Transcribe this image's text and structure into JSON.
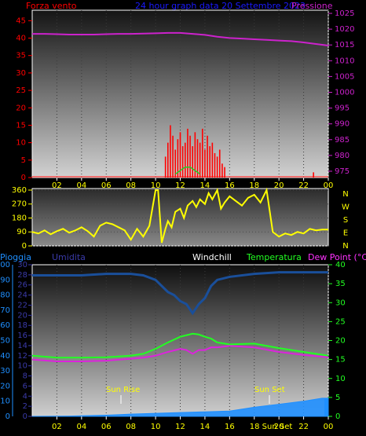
{
  "colors": {
    "background": "#000000",
    "wind": "#ff0000",
    "pressure": "#cc22cc",
    "header_blue": "#1a1aff",
    "direction": "#ffff00",
    "rain_label": "#1f8fff",
    "humidity_label": "#3a3aa8",
    "windchill_label": "#ffffff",
    "temperature_label": "#22ff22",
    "dewpoint_label": "#ff33ff",
    "humidity_line": "#1a4f9a",
    "temperature_line": "#22ff22",
    "dewpoint_line": "#dd22dd",
    "rain_fill": "#1f8fff",
    "tick_text": "#ffff00"
  },
  "top": {
    "left_title": "Forza vento",
    "center_title": "24 hour graph data  20 Settembre 2023",
    "right_title": "Pressione"
  },
  "mid": {
    "direction_letters": [
      "N",
      "W",
      "S",
      "E",
      "N"
    ]
  },
  "bottom": {
    "rain_title": "Pioggia",
    "humidity_title": "Umidita",
    "windchill_title": "Windchill",
    "temperature_title": "Temperatura",
    "dewpoint_title": "Dew Point (°C)",
    "sunrise_label": "Sun Rise",
    "sunset_label": "Sun Set",
    "sunset_tick_label": "18 Sun Set"
  },
  "chart_data": [
    {
      "type": "line",
      "name": "wind_and_pressure",
      "x_tick_labels": [
        "02",
        "04",
        "06",
        "08",
        "10",
        "12",
        "14",
        "16",
        "18",
        "20",
        "22",
        "00"
      ],
      "left_axis": {
        "ticks": [
          0,
          5,
          10,
          15,
          20,
          25,
          30,
          35,
          40,
          45
        ],
        "ylim": [
          0,
          48
        ]
      },
      "right_axis": {
        "ticks": [
          975,
          980,
          985,
          990,
          995,
          1000,
          1005,
          1010,
          1015,
          1020,
          1025
        ],
        "ylim": [
          973,
          1026
        ]
      },
      "pressure": {
        "x": [
          0,
          1,
          2,
          3,
          4,
          5,
          6,
          7,
          8,
          9,
          10,
          11,
          12,
          13,
          14,
          15,
          16,
          17,
          18,
          19,
          20,
          21,
          22,
          23,
          24
        ],
        "values": [
          1018.5,
          1018.5,
          1018.4,
          1018.3,
          1018.3,
          1018.3,
          1018.4,
          1018.5,
          1018.5,
          1018.6,
          1018.7,
          1018.8,
          1018.8,
          1018.5,
          1018.2,
          1017.6,
          1017.2,
          1017.0,
          1016.8,
          1016.6,
          1016.4,
          1016.2,
          1015.8,
          1015.3,
          1014.8
        ]
      },
      "wind": {
        "x": [
          10.8,
          11.0,
          11.2,
          11.4,
          11.6,
          11.8,
          12.0,
          12.2,
          12.4,
          12.6,
          12.8,
          13.0,
          13.2,
          13.4,
          13.6,
          13.8,
          14.0,
          14.2,
          14.4,
          14.6,
          14.8,
          15.0,
          15.2,
          15.4,
          15.6,
          22.8
        ],
        "values": [
          6,
          10,
          15,
          12,
          8,
          11,
          13,
          9,
          10,
          14,
          12,
          9,
          13,
          11,
          10,
          14,
          8,
          12,
          9,
          10,
          7,
          6,
          8,
          4,
          3,
          1.5
        ]
      },
      "gust_green": {
        "x": [
          11.6,
          12.0,
          12.4,
          12.8,
          13.2,
          13.6
        ],
        "values": [
          1,
          2,
          3,
          3,
          2,
          1
        ]
      }
    },
    {
      "type": "line",
      "name": "wind_direction",
      "y_ticks": [
        0,
        90,
        180,
        270,
        360
      ],
      "ylim": [
        0,
        370
      ],
      "x": [
        0,
        0.5,
        1,
        1.5,
        2,
        2.5,
        3,
        3.5,
        4,
        4.5,
        5,
        5.5,
        6,
        6.5,
        7,
        7.5,
        8,
        8.5,
        9,
        9.5,
        10,
        10.2,
        10.5,
        10.8,
        11,
        11.3,
        11.6,
        12,
        12.3,
        12.6,
        13,
        13.3,
        13.6,
        14,
        14.3,
        14.6,
        15,
        15.3,
        15.6,
        16,
        16.5,
        17,
        17.5,
        18,
        18.5,
        19,
        19.5,
        20,
        20.5,
        21,
        21.5,
        22,
        22.5,
        23,
        23.5,
        24
      ],
      "values": [
        90,
        80,
        100,
        75,
        95,
        110,
        85,
        100,
        120,
        95,
        60,
        130,
        150,
        140,
        120,
        100,
        40,
        110,
        60,
        130,
        360,
        360,
        20,
        110,
        160,
        120,
        220,
        240,
        180,
        260,
        290,
        250,
        300,
        270,
        340,
        300,
        360,
        240,
        280,
        320,
        290,
        260,
        310,
        330,
        280,
        360,
        90,
        60,
        80,
        70,
        90,
        80,
        110,
        100,
        105,
        105
      ]
    },
    {
      "type": "line",
      "name": "temperature_humidity_rain",
      "x_tick_labels": [
        "02",
        "04",
        "06",
        "08",
        "10",
        "12",
        "14",
        "16",
        "18",
        "20",
        "22",
        "00"
      ],
      "left_axis_rain": {
        "ticks": [
          0,
          10,
          20,
          30,
          40,
          50,
          60,
          70,
          80,
          90,
          100
        ],
        "ylim": [
          0,
          100
        ]
      },
      "left_axis_humidity": {
        "ticks": [
          0,
          2,
          4,
          6,
          8,
          10,
          12,
          14,
          16,
          18,
          20,
          22,
          24,
          26,
          28,
          30
        ]
      },
      "right_axis": {
        "ticks": [
          0,
          5,
          10,
          15,
          20,
          25,
          30,
          35,
          40
        ],
        "ylim": [
          0,
          40
        ]
      },
      "humidity": {
        "x": [
          0,
          2,
          4,
          6,
          8,
          9,
          10,
          10.5,
          11,
          11.5,
          12,
          12.5,
          13,
          13.5,
          14,
          14.5,
          15,
          16,
          18,
          20,
          22,
          24
        ],
        "values": [
          93,
          93,
          93,
          94,
          94,
          93,
          90,
          86,
          82,
          80,
          76,
          74,
          68,
          74,
          78,
          86,
          90,
          92,
          94,
          95,
          95,
          95
        ]
      },
      "temperature": {
        "x": [
          0,
          2,
          4,
          6,
          8,
          9,
          10,
          11,
          12,
          12.5,
          13,
          13.5,
          14,
          14.5,
          15,
          16,
          18,
          20,
          22,
          24
        ],
        "values": [
          16.0,
          15.5,
          15.5,
          15.6,
          16.0,
          16.5,
          17.8,
          19.5,
          21.0,
          21.4,
          21.8,
          21.6,
          21.0,
          20.5,
          19.5,
          19.0,
          19.2,
          18.0,
          17.0,
          16.0
        ]
      },
      "dewpoint": {
        "x": [
          0,
          2,
          4,
          6,
          8,
          9,
          10,
          11,
          12,
          12.5,
          13,
          13.5,
          14,
          14.5,
          15,
          16,
          18,
          20,
          22,
          24
        ],
        "values": [
          15.0,
          14.5,
          14.5,
          14.7,
          15.2,
          15.5,
          16.0,
          17.0,
          17.8,
          17.5,
          16.5,
          17.5,
          17.5,
          18.2,
          18.2,
          18.6,
          18.2,
          17.0,
          16.2,
          15.6
        ]
      },
      "rain": {
        "x": [
          0,
          3,
          6,
          7.3,
          8,
          10,
          12,
          14,
          16,
          18,
          20,
          22,
          23.5,
          24
        ],
        "values": [
          0,
          0.2,
          0.8,
          1.2,
          1.5,
          2,
          2.5,
          3,
          3.5,
          6,
          8,
          10,
          12,
          12
        ]
      }
    }
  ]
}
